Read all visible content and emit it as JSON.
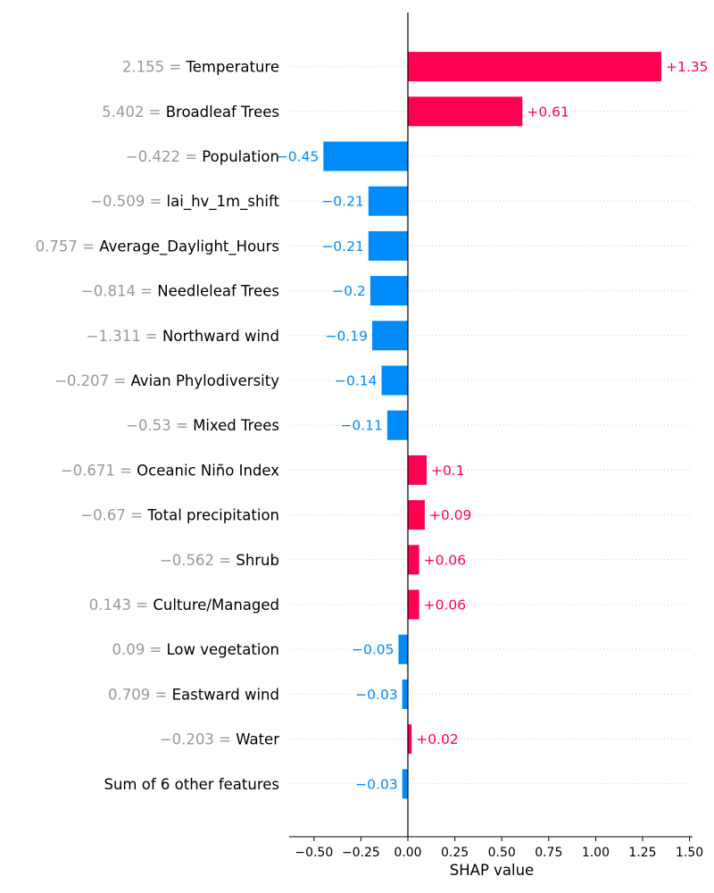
{
  "chart_data": {
    "type": "bar",
    "orientation": "horizontal",
    "xlabel": "SHAP value",
    "xlim": [
      -0.63,
      1.52
    ],
    "x_ticks": [
      -0.5,
      -0.25,
      0.0,
      0.25,
      0.5,
      0.75,
      1.0,
      1.25,
      1.5
    ],
    "x_tick_labels": [
      "−0.50",
      "−0.25",
      "0.00",
      "0.25",
      "0.50",
      "0.75",
      "1.00",
      "1.25",
      "1.50"
    ],
    "colors": {
      "positive": "#ff0051",
      "negative": "#008bfb",
      "feature_value": "#999999",
      "feature_name": "#000000"
    },
    "features": [
      {
        "value_label": "2.155",
        "name": "Temperature",
        "shap": 1.35,
        "shap_label": "+1.35"
      },
      {
        "value_label": "5.402",
        "name": "Broadleaf Trees",
        "shap": 0.61,
        "shap_label": "+0.61"
      },
      {
        "value_label": "−0.422",
        "name": "Population",
        "shap": -0.45,
        "shap_label": "−0.45"
      },
      {
        "value_label": "−0.509",
        "name": "lai_hv_1m_shift",
        "shap": -0.21,
        "shap_label": "−0.21"
      },
      {
        "value_label": "0.757",
        "name": "Average_Daylight_Hours",
        "shap": -0.21,
        "shap_label": "−0.21"
      },
      {
        "value_label": "−0.814",
        "name": "Needleleaf Trees",
        "shap": -0.2,
        "shap_label": "−0.2"
      },
      {
        "value_label": "−1.311",
        "name": "Northward wind",
        "shap": -0.19,
        "shap_label": "−0.19"
      },
      {
        "value_label": "−0.207",
        "name": "Avian Phylodiversity",
        "shap": -0.14,
        "shap_label": "−0.14"
      },
      {
        "value_label": "−0.53",
        "name": "Mixed Trees",
        "shap": -0.11,
        "shap_label": "−0.11"
      },
      {
        "value_label": "−0.671",
        "name": "Oceanic Niño Index",
        "shap": 0.1,
        "shap_label": "+0.1"
      },
      {
        "value_label": "−0.67",
        "name": "Total precipitation",
        "shap": 0.09,
        "shap_label": "+0.09"
      },
      {
        "value_label": "−0.562",
        "name": "Shrub",
        "shap": 0.06,
        "shap_label": "+0.06"
      },
      {
        "value_label": "0.143",
        "name": "Culture/Managed",
        "shap": 0.06,
        "shap_label": "+0.06"
      },
      {
        "value_label": "0.09",
        "name": "Low vegetation",
        "shap": -0.05,
        "shap_label": "−0.05"
      },
      {
        "value_label": "0.709",
        "name": "Eastward wind",
        "shap": -0.03,
        "shap_label": "−0.03"
      },
      {
        "value_label": "−0.203",
        "name": "Water",
        "shap": 0.02,
        "shap_label": "+0.02"
      },
      {
        "value_label": "",
        "name": "Sum of 6 other features",
        "shap": -0.03,
        "shap_label": "−0.03"
      }
    ]
  }
}
